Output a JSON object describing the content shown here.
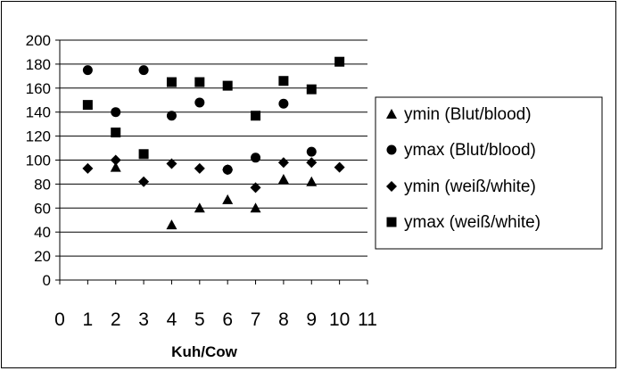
{
  "chart_data": {
    "type": "scatter",
    "title": "",
    "xlabel": "Kuh/Cow",
    "ylabel": "",
    "xlim": [
      0,
      11
    ],
    "ylim": [
      0,
      200
    ],
    "x_ticks": [
      "0",
      "1",
      "2",
      "3",
      "4",
      "5",
      "6",
      "7",
      "8",
      "9",
      "10",
      "11"
    ],
    "y_ticks": [
      "0",
      "20",
      "40",
      "60",
      "80",
      "100",
      "120",
      "140",
      "160",
      "180",
      "200"
    ],
    "grid": "horizontal",
    "legend_position": "right",
    "series": [
      {
        "name": "ymin (Blut/blood)",
        "marker": "triangle",
        "color": "#000000",
        "points": [
          [
            2,
            94
          ],
          [
            4,
            46
          ],
          [
            5,
            60
          ],
          [
            6,
            67
          ],
          [
            7,
            60
          ],
          [
            8,
            84
          ],
          [
            9,
            82
          ]
        ]
      },
      {
        "name": "ymax (Blut/blood)",
        "marker": "circle",
        "color": "#000000",
        "points": [
          [
            1,
            175
          ],
          [
            2,
            140
          ],
          [
            3,
            175
          ],
          [
            4,
            137
          ],
          [
            5,
            148
          ],
          [
            6,
            92
          ],
          [
            7,
            102
          ],
          [
            8,
            147
          ],
          [
            9,
            107
          ]
        ]
      },
      {
        "name": "ymin (weiß/white)",
        "marker": "diamond",
        "color": "#000000",
        "points": [
          [
            1,
            93
          ],
          [
            2,
            100
          ],
          [
            3,
            82
          ],
          [
            4,
            97
          ],
          [
            5,
            93
          ],
          [
            6,
            92
          ],
          [
            7,
            77
          ],
          [
            8,
            98
          ],
          [
            9,
            98
          ],
          [
            10,
            94
          ]
        ]
      },
      {
        "name": "ymax (weiß/white)",
        "marker": "square",
        "color": "#000000",
        "points": [
          [
            1,
            146
          ],
          [
            2,
            123
          ],
          [
            3,
            105
          ],
          [
            4,
            165
          ],
          [
            5,
            165
          ],
          [
            6,
            162
          ],
          [
            7,
            137
          ],
          [
            8,
            166
          ],
          [
            9,
            159
          ],
          [
            10,
            182
          ]
        ]
      }
    ]
  }
}
